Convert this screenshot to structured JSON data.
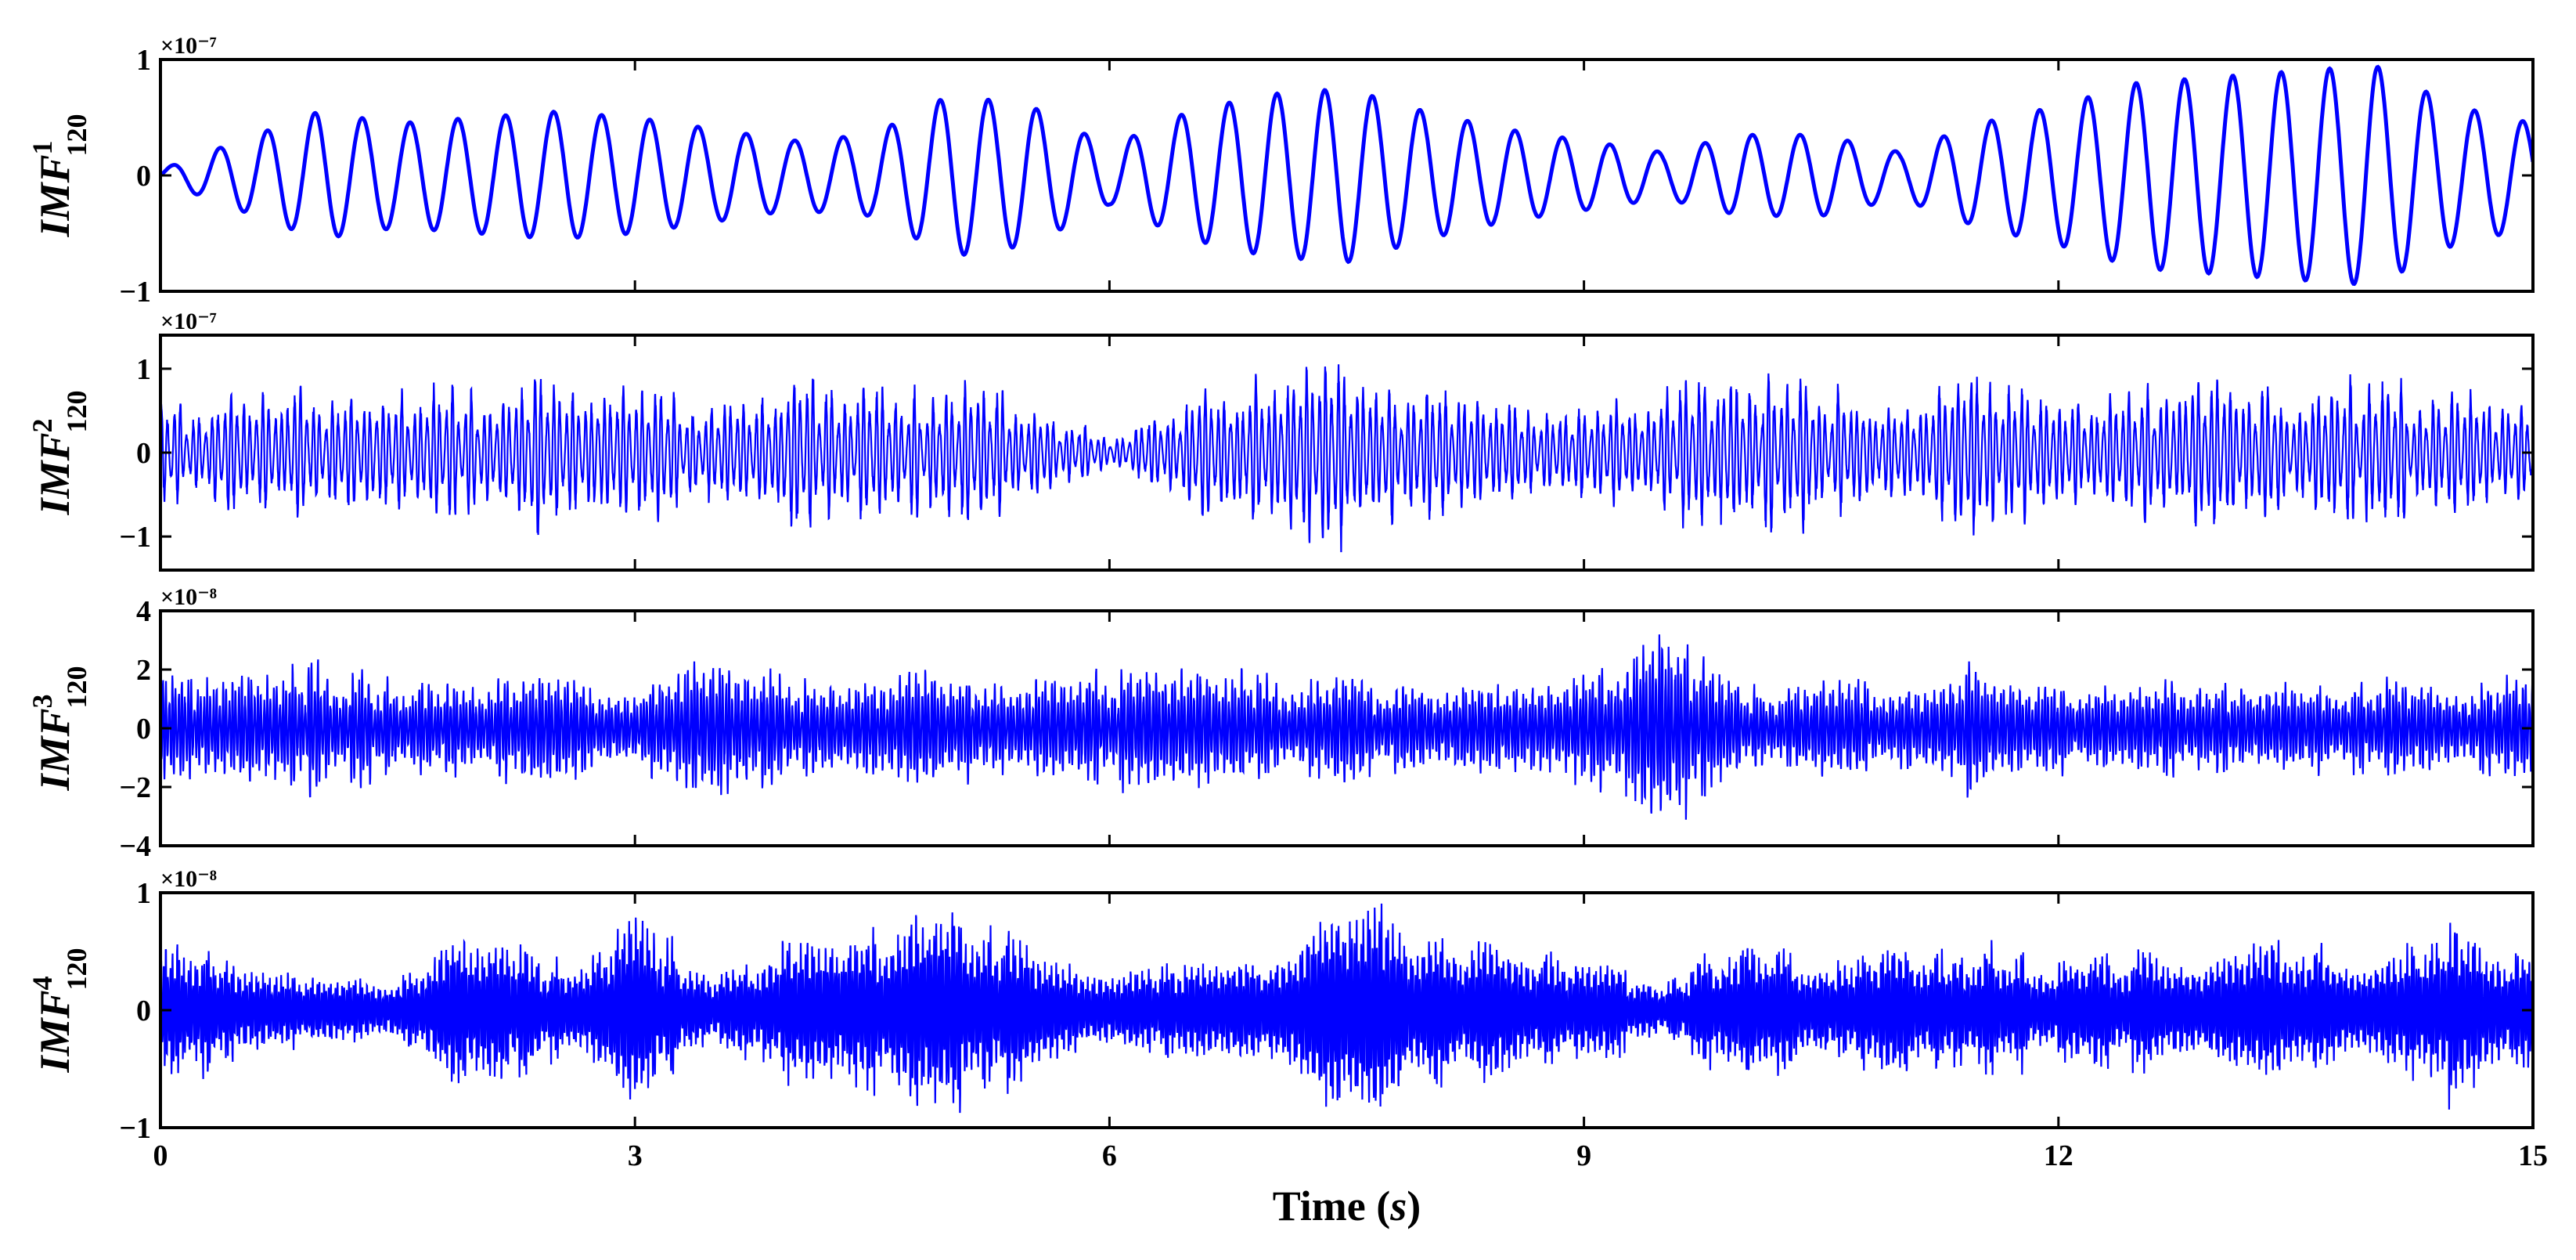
{
  "chart_data": [
    {
      "type": "line",
      "panel": 1,
      "ylabel": {
        "base": "IMF",
        "sup": "1",
        "sub": "120"
      },
      "exponent": "×10⁻⁷",
      "ylim": [
        -1,
        1
      ],
      "yticks": [
        "1",
        "0",
        "−1"
      ],
      "ytick_values": [
        1,
        0,
        -1
      ],
      "xlim": [
        0,
        15
      ],
      "color": "#0000ff",
      "signal": "narrowband oscillation, ~3.3 Hz, amplitude envelope 0.1–1 (×1e-7)",
      "x": [
        0,
        0.5,
        1,
        1.5,
        2,
        2.5,
        3,
        3.5,
        4,
        4.5,
        5,
        5.5,
        6,
        6.5,
        7,
        7.5,
        8,
        8.5,
        9,
        9.5,
        10,
        10.5,
        11,
        11.5,
        12,
        12.5,
        13,
        13.5,
        14,
        14.5,
        15
      ],
      "envelope": [
        0.05,
        0.3,
        0.55,
        0.45,
        0.5,
        0.55,
        0.5,
        0.4,
        0.3,
        0.35,
        0.7,
        0.6,
        0.25,
        0.55,
        0.7,
        0.75,
        0.55,
        0.4,
        0.3,
        0.2,
        0.35,
        0.35,
        0.2,
        0.45,
        0.6,
        0.8,
        0.85,
        0.9,
        0.95,
        0.6,
        0.45
      ],
      "freq_hz": 3.3
    },
    {
      "type": "line",
      "panel": 2,
      "ylabel": {
        "base": "IMF",
        "sup": "2",
        "sub": "120"
      },
      "exponent": "×10⁻⁷",
      "ylim": [
        -1.4,
        1.4
      ],
      "yticks": [
        "1",
        "0",
        "−1"
      ],
      "ytick_values": [
        1,
        0,
        -1
      ],
      "xlim": [
        0,
        15
      ],
      "color": "#0000ff",
      "signal": "amplitude-modulated oscillation, ~25 Hz, amplitude up to ~1.2 (×1e-7)",
      "x": [
        0,
        0.5,
        1,
        1.5,
        2,
        2.5,
        3,
        3.5,
        4,
        4.5,
        5,
        5.5,
        6,
        6.5,
        7,
        7.5,
        8,
        8.5,
        9,
        9.5,
        10,
        10.5,
        11,
        11.5,
        12,
        12.5,
        13,
        13.5,
        14,
        14.5,
        15
      ],
      "envelope": [
        0.6,
        0.75,
        0.85,
        0.7,
        0.9,
        1.05,
        0.8,
        0.6,
        1.0,
        0.8,
        0.85,
        0.7,
        0.15,
        0.75,
        0.9,
        1.2,
        0.8,
        0.6,
        0.75,
        0.85,
        1.05,
        0.9,
        0.6,
        1.15,
        0.85,
        0.8,
        0.9,
        0.75,
        0.9,
        0.7,
        0.65
      ],
      "freq_hz": 25
    },
    {
      "type": "line",
      "panel": 3,
      "ylabel": {
        "base": "IMF",
        "sup": "3",
        "sub": "120"
      },
      "exponent": "×10⁻⁸",
      "ylim": [
        -4,
        4
      ],
      "yticks": [
        "4",
        "2",
        "0",
        "−2",
        "−4"
      ],
      "ytick_values": [
        4,
        2,
        0,
        -2,
        -4
      ],
      "xlim": [
        0,
        15
      ],
      "color": "#0000ff",
      "signal": "bursty broadband oscillation, ~50 Hz, amplitude mostly ±2, peaks to ±3.5 (×1e-8)",
      "x": [
        0,
        0.5,
        1,
        1.5,
        2,
        2.5,
        3,
        3.5,
        4,
        4.5,
        5,
        5.5,
        6,
        6.5,
        7,
        7.5,
        8,
        8.5,
        9,
        9.5,
        10,
        10.5,
        11,
        11.5,
        12,
        12.5,
        13,
        13.5,
        14,
        14.5,
        15
      ],
      "envelope": [
        2.2,
        2.0,
        2.4,
        1.6,
        1.8,
        2.0,
        1.5,
        2.6,
        1.8,
        1.7,
        2.3,
        1.6,
        2.0,
        2.3,
        1.8,
        1.9,
        1.4,
        1.7,
        1.8,
        3.5,
        1.6,
        1.8,
        1.5,
        2.6,
        1.5,
        1.7,
        1.8,
        1.6,
        1.9,
        1.6,
        2.0
      ],
      "freq_hz": 50
    },
    {
      "type": "line",
      "panel": 4,
      "ylabel": {
        "base": "IMF",
        "sup": "4",
        "sub": "120"
      },
      "exponent": "×10⁻⁸",
      "ylim": [
        -1,
        1
      ],
      "yticks": [
        "1",
        "0",
        "−1"
      ],
      "ytick_values": [
        1,
        0,
        -1
      ],
      "xlim": [
        0,
        15
      ],
      "color": "#0000ff",
      "signal": "bursty broadband oscillation, ~70 Hz, amplitude mostly ±0.6, peaks to ±0.95 (×1e-8)",
      "x": [
        0,
        0.5,
        1,
        1.5,
        2,
        2.5,
        3,
        3.5,
        4,
        4.5,
        5,
        5.5,
        6,
        6.5,
        7,
        7.5,
        8,
        8.5,
        9,
        9.5,
        10,
        10.5,
        11,
        11.5,
        12,
        12.5,
        13,
        13.5,
        14,
        14.5,
        15
      ],
      "envelope": [
        0.9,
        0.4,
        0.3,
        0.25,
        0.8,
        0.45,
        0.85,
        0.3,
        0.6,
        0.75,
        0.9,
        0.6,
        0.3,
        0.55,
        0.45,
        0.95,
        0.7,
        0.6,
        0.5,
        0.25,
        0.75,
        0.5,
        0.55,
        0.6,
        0.45,
        0.55,
        0.5,
        0.65,
        0.45,
        0.95,
        0.5
      ],
      "freq_hz": 70
    }
  ],
  "xaxis": {
    "label": "Time (s)",
    "label_main": "Time (",
    "label_var": "s",
    "label_close": ")",
    "xlim": [
      0,
      15
    ],
    "ticks": [
      0,
      3,
      6,
      9,
      12,
      15
    ],
    "tick_labels": [
      "0",
      "3",
      "6",
      "9",
      "12",
      "15"
    ]
  },
  "grid": false,
  "legend": "none"
}
